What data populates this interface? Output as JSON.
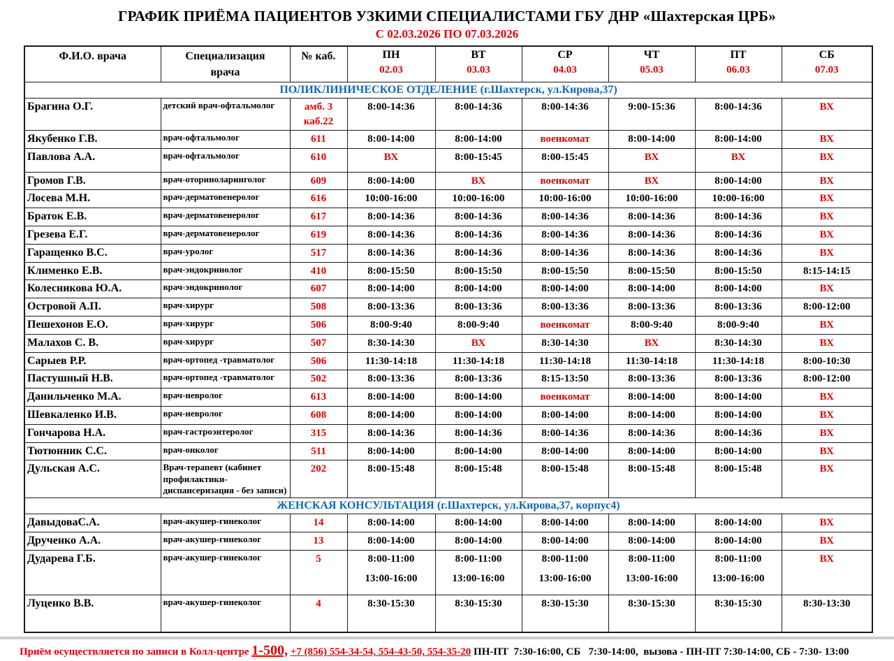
{
  "title": "ГРАФИК ПРИЁМА ПАЦИЕНТОВ УЗКИМИ СПЕЦИАЛИСТАМИ ГБУ ДНР «Шахтерская ЦРБ»",
  "subtitle": "С 02.03.2026 ПО 07.03.2026",
  "colors": {
    "red": "#e20000",
    "blue": "#1268b1",
    "black": "#000000"
  },
  "special_values": [
    "ВХ",
    "военкомат"
  ],
  "table": {
    "headers": {
      "fio": "Ф.И.О. врача",
      "spec_line1": "Специализация",
      "spec_line2": "врача",
      "cab": "№ каб.",
      "days": [
        {
          "day": "ПН",
          "date": "02.03"
        },
        {
          "day": "ВТ",
          "date": "03.03"
        },
        {
          "day": "СР",
          "date": "04.03"
        },
        {
          "day": "ЧТ",
          "date": "05.03"
        },
        {
          "day": "ПТ",
          "date": "06.03"
        },
        {
          "day": "СБ",
          "date": "07.03"
        }
      ]
    },
    "sections": [
      {
        "name": "ПОЛИКЛИНИЧЕСКОЕ ОТДЕЛЕНИЕ (г.Шахтерск, ул.Кирова,37)",
        "rows": [
          {
            "fio": "Брагина О.Г.",
            "spec": "детский врач-офтальмолог",
            "cab": [
              "амб. 3",
              "каб.22"
            ],
            "times": [
              "8:00-14:36",
              "8:00-14:36",
              "8:00-14:36",
              "9:00-15:36",
              "8:00-14:36",
              "ВХ"
            ]
          },
          {
            "fio": "Якубенко Г.В.",
            "spec": "врач-офтальмолог",
            "cab": "611",
            "times": [
              "8:00-14:00",
              "8:00-14:00",
              "военкомат",
              "8:00-14:00",
              "8:00-14:00",
              "ВХ"
            ]
          },
          {
            "fio": "Павлова А.А.",
            "spec": "врач-офтальмолог",
            "cab": "610",
            "times": [
              "ВХ",
              "8:00-15:45",
              "8:00-15:45",
              "ВХ",
              "ВХ",
              "ВХ"
            ]
          },
          {
            "fio": "Громов Г.В.",
            "spec": "врач-оториноларинголог",
            "cab": "609",
            "times": [
              "8:00-14:00",
              "ВХ",
              "военкомат",
              "ВХ",
              "8:00-14:00",
              "ВХ"
            ]
          },
          {
            "fio": "Лосева М.Н.",
            "spec": "врач-дерматовенеролог",
            "cab": "616",
            "times": [
              "10:00-16:00",
              "10:00-16:00",
              "10:00-16:00",
              "10:00-16:00",
              "10:00-16:00",
              "ВХ"
            ]
          },
          {
            "fio": "Браток Е.В.",
            "spec": "врач-дерматовенеролог",
            "cab": "617",
            "times": [
              "8:00-14:36",
              "8:00-14:36",
              "8:00-14:36",
              "8:00-14:36",
              "8:00-14:36",
              "ВХ"
            ]
          },
          {
            "fio": "Грезева Е.Г.",
            "spec": "врач-дерматовенеролог",
            "cab": "619",
            "times": [
              "8:00-14:36",
              "8:00-14:36",
              "8:00-14:36",
              "8:00-14:36",
              "8:00-14:36",
              "ВХ"
            ]
          },
          {
            "fio": "Гаращенко В.С.",
            "spec": "врач-уролог",
            "cab": "517",
            "times": [
              "8:00-14:36",
              "8:00-14:36",
              "8:00-14:36",
              "8:00-14:36",
              "8:00-14:36",
              "ВХ"
            ]
          },
          {
            "fio": "Клименко Е.В.",
            "spec": "врач-эндокринолог",
            "cab": "410",
            "times": [
              "8:00-15:50",
              "8:00-15:50",
              "8:00-15:50",
              "8:00-15:50",
              "8:00-15:50",
              "8:15-14:15"
            ]
          },
          {
            "fio": "Колесникова Ю.А.",
            "spec": "врач-эндокринолог",
            "cab": "607",
            "times": [
              "8:00-14:00",
              "8:00-14:00",
              "8:00-14:00",
              "8:00-14:00",
              "8:00-14:00",
              "ВХ"
            ]
          },
          {
            "fio": "Островой А.П.",
            "spec": "врач-хирург",
            "cab": "508",
            "times": [
              "8:00-13:36",
              "8:00-13:36",
              "8:00-13:36",
              "8:00-13:36",
              "8:00-13:36",
              "8:00-12:00"
            ]
          },
          {
            "fio": "Пешехонов Е.О.",
            "spec": "врач-хирург",
            "cab": "506",
            "times": [
              "8:00-9:40",
              "8:00-9:40",
              "военкомат",
              "8:00-9:40",
              "8:00-9:40",
              "ВХ"
            ]
          },
          {
            "fio": "Малахов С. В.",
            "spec": "врач-хирург",
            "cab": "507",
            "times": [
              "8:30-14:30",
              "ВХ",
              "8:30-14:30",
              "ВХ",
              "8:30-14:30",
              "ВХ"
            ]
          },
          {
            "fio": "Сарыев Р.Р.",
            "spec": "врач-ортопед -травматолог",
            "cab": "506",
            "times": [
              "11:30-14:18",
              "11:30-14:18",
              "11:30-14:18",
              "11:30-14:18",
              "11:30-14:18",
              "8:00-10:30"
            ]
          },
          {
            "fio": "Пастушный Н.В.",
            "spec": "врач-ортопед -травматолог",
            "cab": "502",
            "times": [
              "8:00-13:36",
              "8:00-13:36",
              "8:15-13:50",
              "8:00-13:36",
              "8:00-13:36",
              "8:00-12:00"
            ]
          },
          {
            "fio": "Данильченко М.А.",
            "spec": "врач-невролог",
            "cab": "613",
            "times": [
              "8:00-14:00",
              "8:00-14:00",
              "военкомат",
              "8:00-14:00",
              "8:00-14:00",
              "ВХ"
            ]
          },
          {
            "fio": "Шевкаленко И.В.",
            "spec": "врач-невролог",
            "cab": "608",
            "times": [
              "8:00-14:00",
              "8:00-14:00",
              "8:00-14:00",
              "8:00-14:00",
              "8:00-14:00",
              "ВХ"
            ]
          },
          {
            "fio": "Гончарова Н.А.",
            "spec": "врач-гастроэнтеролог",
            "cab": "315",
            "times": [
              "8:00-14:36",
              "8:00-14:36",
              "8:00-14:36",
              "8:00-14:36",
              "8:00-14:36",
              "ВХ"
            ]
          },
          {
            "fio": "Тютюнник С.С.",
            "spec": "врач-онколог",
            "cab": "511",
            "times": [
              "8:00-14:00",
              "8:00-14:00",
              "8:00-14:00",
              "8:00-14:00",
              "8:00-14:00",
              "ВХ"
            ]
          },
          {
            "fio": "Дульская А.С.",
            "spec": "Врач-терапевт (кабинет профилактики- диспансеризация - без записи)",
            "cab": "202",
            "times": [
              "8:00-15:48",
              "8:00-15:48",
              "8:00-15:48",
              "8:00-15:48",
              "8:00-15:48",
              "ВХ"
            ]
          }
        ]
      },
      {
        "name": "ЖЕНСКАЯ КОНСУЛЬТАЦИЯ (г.Шахтерск, ул.Кирова,37, корпус4)",
        "rows": [
          {
            "fio": "ДавыдоваС.А.",
            "spec": "врач-акушер-гинеколог",
            "cab": "14",
            "times": [
              "8:00-14:00",
              "8:00-14:00",
              "8:00-14:00",
              "8:00-14:00",
              "8:00-14:00",
              "ВХ"
            ]
          },
          {
            "fio": "Друченко А.А.",
            "spec": "врач-акушер-гинеколог",
            "cab": "13",
            "times": [
              "8:00-14:00",
              "8:00-14:00",
              "8:00-14:00",
              "8:00-14:00",
              "8:00-14:00",
              "ВХ"
            ]
          },
          {
            "fio": "Дударева Г.Б.",
            "spec": "врач-акушер-гинеколог",
            "cab": "5",
            "times": [
              [
                "8:00-11:00",
                "13:00-16:00"
              ],
              [
                "8:00-11:00",
                "13:00-16:00"
              ],
              [
                "8:00-11:00",
                "13:00-16:00"
              ],
              [
                "8:00-11:00",
                "13:00-16:00"
              ],
              [
                "8:00-11:00",
                "13:00-16:00"
              ],
              "ВХ"
            ]
          },
          {
            "fio": "Луценко В.В.",
            "spec": "врач-акушер-гинеколог",
            "cab": "4",
            "times": [
              "8:30-15:30",
              "8:30-15:30",
              "8:30-15:30",
              "8:30-15:30",
              "8:30-15:30",
              "8:30-13:30"
            ]
          }
        ]
      }
    ]
  },
  "footer": {
    "note": "Приём осуществляется по записи в Колл-центре",
    "phone_main": "1-500,",
    "phones": "+7 (856) 554-34-54, 554-43-50, 554-35-20",
    "hours": "ПН-ПТ  7:30-16:00, СБ   7:30-14:00,  вызова - ПН-ПТ 7:30-14:00, СБ - 7:30- 13:00"
  }
}
